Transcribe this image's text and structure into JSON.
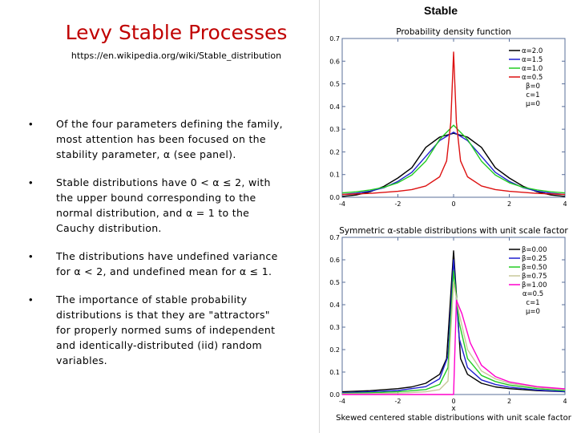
{
  "slide": {
    "title": "Levy Stable Processes",
    "link": "https://en.wikipedia.org/wiki/Stable_distribution",
    "bullets": [
      "Of the four parameters defining the family, most attention has been focused on the stability parameter, α (see panel).",
      "Stable distributions have 0 < α ≤ 2, with the upper bound corresponding to the normal distribution, and α = 1 to the Cauchy distribution.",
      "The distributions have undefined variance for α < 2, and undefined mean for α ≤ 1.",
      "The importance of stable probability distributions is that they are \"attractors\" for properly normed sums of independent and identically-distributed (iid) random variables."
    ],
    "bullet_symbol": "•"
  },
  "panel": {
    "title": "Stable"
  },
  "colors": {
    "title": "#c00000",
    "black": "#000000",
    "blue": "#1f1fd0",
    "green": "#22cc22",
    "red": "#dd1111",
    "pink": "#ff66ff",
    "magenta": "#ff00cc",
    "tan": "#c8c89a",
    "frame": "#5a6f9a"
  },
  "chart_data": [
    {
      "type": "line",
      "title": "Probability density function",
      "xlim": [
        -4,
        4
      ],
      "ylim": [
        0,
        0.7
      ],
      "xticks": [
        -4,
        -2,
        0,
        2,
        4
      ],
      "yticks": [
        0.0,
        0.1,
        0.2,
        0.3,
        0.4,
        0.5,
        0.6,
        0.7
      ],
      "legend_position": "top-right",
      "series": [
        {
          "name": "α=2.0",
          "color_key": "black",
          "x": [
            -4,
            -3.5,
            -3,
            -2.5,
            -2,
            -1.5,
            -1,
            -0.5,
            0,
            0.5,
            1,
            1.5,
            2,
            2.5,
            3,
            3.5,
            4
          ],
          "y": [
            0.004,
            0.01,
            0.024,
            0.048,
            0.085,
            0.13,
            0.22,
            0.265,
            0.282,
            0.265,
            0.22,
            0.13,
            0.085,
            0.048,
            0.024,
            0.01,
            0.004
          ]
        },
        {
          "name": "α=1.5",
          "color_key": "blue",
          "x": [
            -4,
            -3.5,
            -3,
            -2.5,
            -2,
            -1.5,
            -1,
            -0.5,
            0,
            0.5,
            1,
            1.5,
            2,
            2.5,
            3,
            3.5,
            4
          ],
          "y": [
            0.012,
            0.018,
            0.027,
            0.042,
            0.07,
            0.11,
            0.18,
            0.25,
            0.287,
            0.25,
            0.18,
            0.11,
            0.07,
            0.042,
            0.027,
            0.018,
            0.012
          ]
        },
        {
          "name": "α=1.0",
          "color_key": "green",
          "x": [
            -4,
            -3.5,
            -3,
            -2.5,
            -2,
            -1.5,
            -1,
            -0.5,
            0,
            0.5,
            1,
            1.5,
            2,
            2.5,
            3,
            3.5,
            4
          ],
          "y": [
            0.019,
            0.024,
            0.032,
            0.044,
            0.064,
            0.098,
            0.159,
            0.255,
            0.318,
            0.255,
            0.159,
            0.098,
            0.064,
            0.044,
            0.032,
            0.024,
            0.019
          ]
        },
        {
          "name": "α=0.5",
          "color_key": "red",
          "x": [
            -4,
            -3,
            -2,
            -1.5,
            -1,
            -0.5,
            -0.25,
            -0.1,
            0,
            0.1,
            0.25,
            0.5,
            1,
            1.5,
            2,
            3,
            4
          ],
          "y": [
            0.012,
            0.017,
            0.026,
            0.034,
            0.05,
            0.09,
            0.16,
            0.33,
            0.64,
            0.33,
            0.16,
            0.09,
            0.05,
            0.034,
            0.026,
            0.017,
            0.012
          ]
        }
      ],
      "legend_extra": [
        "β=0",
        "c=1",
        "μ=0"
      ]
    },
    {
      "type": "line",
      "title": "Symmetric α-stable distributions with unit scale factor",
      "xlim": [
        -4,
        4
      ],
      "ylim": [
        0,
        0.7
      ],
      "xticks": [
        -4,
        -2,
        0,
        2,
        4
      ],
      "yticks": [
        0.0,
        0.1,
        0.2,
        0.3,
        0.4,
        0.5,
        0.6,
        0.7
      ],
      "xlabel": "x",
      "legend_position": "top-right",
      "caption": "Skewed centered stable distributions with unit scale factor",
      "series": [
        {
          "name": "β=0.00",
          "color_key": "black",
          "x": [
            -4,
            -3,
            -2,
            -1.5,
            -1,
            -0.5,
            -0.25,
            0,
            0.25,
            0.5,
            1,
            1.5,
            2,
            3,
            4
          ],
          "y": [
            0.012,
            0.017,
            0.026,
            0.034,
            0.05,
            0.09,
            0.16,
            0.64,
            0.16,
            0.09,
            0.05,
            0.034,
            0.026,
            0.017,
            0.012
          ]
        },
        {
          "name": "β=0.25",
          "color_key": "blue",
          "x": [
            -4,
            -3,
            -2,
            -1,
            -0.5,
            -0.2,
            0,
            0.2,
            0.5,
            1,
            1.5,
            2,
            3,
            4
          ],
          "y": [
            0.008,
            0.012,
            0.018,
            0.035,
            0.07,
            0.17,
            0.6,
            0.25,
            0.12,
            0.065,
            0.045,
            0.033,
            0.02,
            0.013
          ]
        },
        {
          "name": "β=0.50",
          "color_key": "green",
          "x": [
            -4,
            -3,
            -2,
            -1,
            -0.5,
            -0.2,
            0,
            0.2,
            0.5,
            1,
            1.5,
            2,
            3,
            4
          ],
          "y": [
            0.005,
            0.008,
            0.012,
            0.022,
            0.045,
            0.12,
            0.55,
            0.32,
            0.16,
            0.085,
            0.058,
            0.042,
            0.026,
            0.017
          ]
        },
        {
          "name": "β=0.75",
          "color_key": "tan",
          "x": [
            -4,
            -3,
            -2,
            -1,
            -0.5,
            -0.2,
            0,
            0.2,
            0.5,
            1,
            1.5,
            2,
            3,
            4
          ],
          "y": [
            0.003,
            0.004,
            0.006,
            0.012,
            0.022,
            0.06,
            0.5,
            0.36,
            0.2,
            0.105,
            0.07,
            0.05,
            0.031,
            0.021
          ]
        },
        {
          "name": "β=1.00",
          "color_key": "magenta",
          "x": [
            -4,
            -1,
            -0.05,
            0,
            0.1,
            0.3,
            0.6,
            1,
            1.5,
            2,
            3,
            4
          ],
          "y": [
            0.0,
            0.0,
            0.0,
            0.0,
            0.42,
            0.36,
            0.23,
            0.13,
            0.08,
            0.056,
            0.035,
            0.025
          ]
        }
      ],
      "legend_extra": [
        "α=0.5",
        "c=1",
        "μ=0"
      ]
    }
  ]
}
